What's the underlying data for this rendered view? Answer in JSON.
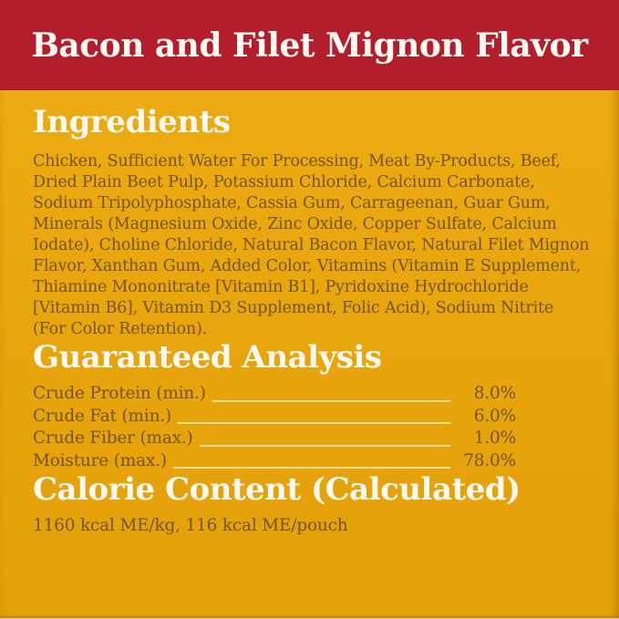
{
  "banner": {
    "title": "Bacon and Filet Mignon Flavor"
  },
  "ingredients": {
    "heading": "Ingredients",
    "lines": [
      "Chicken, Sufficient Water For Processing, Meat By-Products, Beef,",
      "Dried Plain Beet Pulp, Potassium Chloride, Calcium Carbonate,",
      "Sodium Tripolyphosphate, Cassia Gum, Carrageenan, Guar Gum,",
      "Minerals (Magnesium Oxide, Zinc Oxide, Copper Sulfate, Calcium",
      "Iodate), Choline Chloride, Natural Bacon Flavor, Natural Filet Mignon",
      "Flavor, Xanthan Gum, Added Color, Vitamins (Vitamin E Supplement,",
      "Thiamine Mononitrate [Vitamin B1], Pyridoxine Hydrochloride",
      "[Vitamin B6], Vitamin D3 Supplement, Folic Acid), Sodium Nitrite",
      "(For Color Retention)."
    ]
  },
  "guaranteed_analysis": {
    "heading": "Guaranteed Analysis",
    "rows": [
      {
        "label": "Crude Protein (min.)",
        "value": "8.0%"
      },
      {
        "label": "Crude Fat (min.)",
        "value": "6.0%"
      },
      {
        "label": "Crude Fiber (max.)",
        "value": "1.0%"
      },
      {
        "label": "Moisture (max.)",
        "value": "78.0%"
      }
    ]
  },
  "calorie_content": {
    "heading": "Calorie Content (Calculated)",
    "text": "1160 kcal ME/kg, 116 kcal ME/pouch"
  },
  "colors": {
    "banner_red": "#B21E2C",
    "label_gold": "#E9A60E",
    "heading_white": "#FCF9F2",
    "body_text_brown": "#73550F",
    "leader_line_cream": "#F2DC96"
  }
}
